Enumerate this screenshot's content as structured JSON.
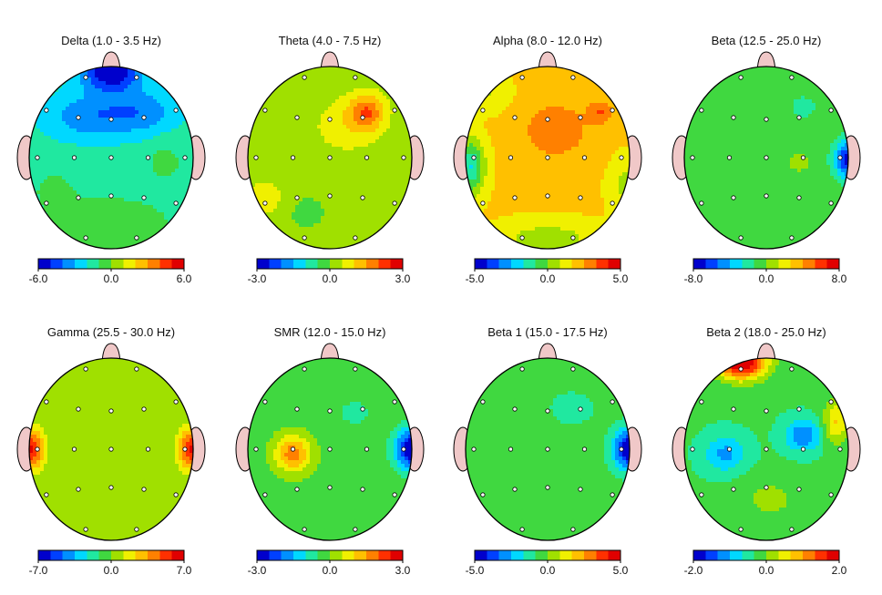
{
  "chart_data": [
    {
      "type": "heatmap",
      "title": "Delta (1.0 - 3.5 Hz)",
      "scale": {
        "min": -6.0,
        "max": 6.0,
        "ticks": [
          "-6.0",
          "0.0",
          "6.0"
        ]
      },
      "base": -1.6,
      "blobs": [
        {
          "u": 0.0,
          "v": -0.95,
          "su": 0.35,
          "sv": 0.22,
          "a": -4.6
        },
        {
          "u": -0.3,
          "v": -0.45,
          "su": 0.5,
          "sv": 0.25,
          "a": -2.0
        },
        {
          "u": 0.35,
          "v": -0.5,
          "su": 0.45,
          "sv": 0.25,
          "a": -2.0
        },
        {
          "u": 0.65,
          "v": 0.05,
          "su": 0.25,
          "sv": 0.25,
          "a": 0.9
        },
        {
          "u": 0.0,
          "v": 0.75,
          "su": 0.7,
          "sv": 0.3,
          "a": 1.6
        },
        {
          "u": -0.7,
          "v": 0.35,
          "su": 0.3,
          "sv": 0.25,
          "a": 0.8
        }
      ]
    },
    {
      "type": "heatmap",
      "title": "Theta (4.0 - 7.5 Hz)",
      "scale": {
        "min": -3.0,
        "max": 3.0,
        "ticks": [
          "-3.0",
          "0.0",
          "3.0"
        ]
      },
      "base": 0.2,
      "blobs": [
        {
          "u": 0.45,
          "v": -0.5,
          "su": 0.22,
          "sv": 0.2,
          "a": 1.6
        },
        {
          "u": 0.2,
          "v": -0.35,
          "su": 0.4,
          "sv": 0.3,
          "a": 0.6
        },
        {
          "u": -0.8,
          "v": 0.45,
          "su": 0.25,
          "sv": 0.2,
          "a": 0.7
        },
        {
          "u": -0.3,
          "v": 0.6,
          "su": 0.35,
          "sv": 0.25,
          "a": -0.3
        }
      ]
    },
    {
      "type": "heatmap",
      "title": "Alpha (8.0 - 12.0 Hz)",
      "scale": {
        "min": -5.0,
        "max": 5.0,
        "ticks": [
          "-5.0",
          "0.0",
          "5.0"
        ]
      },
      "base": 1.8,
      "blobs": [
        {
          "u": 0.1,
          "v": -0.3,
          "su": 0.45,
          "sv": 0.35,
          "a": 1.2
        },
        {
          "u": 0.65,
          "v": -0.5,
          "su": 0.15,
          "sv": 0.12,
          "a": 1.4
        },
        {
          "u": -0.95,
          "v": 0.1,
          "su": 0.18,
          "sv": 0.3,
          "a": -3.5
        },
        {
          "u": 0.0,
          "v": 0.9,
          "su": 0.6,
          "sv": 0.2,
          "a": -1.5
        },
        {
          "u": 0.95,
          "v": 0.3,
          "su": 0.2,
          "sv": 0.3,
          "a": -1.2
        },
        {
          "u": -0.7,
          "v": -0.7,
          "su": 0.25,
          "sv": 0.2,
          "a": -1.0
        }
      ]
    },
    {
      "type": "heatmap",
      "title": "Beta (12.5 - 25.0 Hz)",
      "scale": {
        "min": -8.0,
        "max": 8.0,
        "ticks": [
          "-8.0",
          "0.0",
          "8.0"
        ]
      },
      "base": -0.6,
      "blobs": [
        {
          "u": 1.0,
          "v": 0.02,
          "su": 0.17,
          "sv": 0.2,
          "a": -6.8
        },
        {
          "u": 0.45,
          "v": -0.55,
          "su": 0.25,
          "sv": 0.2,
          "a": -1.0
        },
        {
          "u": 0.4,
          "v": 0.05,
          "su": 0.18,
          "sv": 0.15,
          "a": 0.9
        }
      ]
    },
    {
      "type": "heatmap",
      "title": "Gamma (25.5 - 30.0 Hz)",
      "scale": {
        "min": -7.0,
        "max": 7.0,
        "ticks": [
          "-7.0",
          "0.0",
          "7.0"
        ]
      },
      "base": 0.0,
      "blobs": [
        {
          "u": -1.0,
          "v": 0.0,
          "su": 0.18,
          "sv": 0.24,
          "a": 6.2
        },
        {
          "u": 1.0,
          "v": 0.0,
          "su": 0.18,
          "sv": 0.24,
          "a": 6.2
        }
      ]
    },
    {
      "type": "heatmap",
      "title": "SMR (12.0 - 15.0 Hz)",
      "scale": {
        "min": -3.0,
        "max": 3.0,
        "ticks": [
          "-3.0",
          "0.0",
          "3.0"
        ]
      },
      "base": -0.2,
      "blobs": [
        {
          "u": -0.45,
          "v": 0.05,
          "su": 0.22,
          "sv": 0.2,
          "a": 2.0
        },
        {
          "u": 1.0,
          "v": 0.0,
          "su": 0.2,
          "sv": 0.22,
          "a": -3.0
        },
        {
          "u": 0.3,
          "v": -0.4,
          "su": 0.3,
          "sv": 0.2,
          "a": -0.4
        }
      ]
    },
    {
      "type": "heatmap",
      "title": "Beta 1 (15.0 - 17.5 Hz)",
      "scale": {
        "min": -5.0,
        "max": 5.0,
        "ticks": [
          "-5.0",
          "0.0",
          "5.0"
        ]
      },
      "base": -0.5,
      "blobs": [
        {
          "u": 1.0,
          "v": 0.0,
          "su": 0.2,
          "sv": 0.22,
          "a": -4.6
        },
        {
          "u": 0.3,
          "v": -0.45,
          "su": 0.3,
          "sv": 0.2,
          "a": -0.7
        }
      ]
    },
    {
      "type": "heatmap",
      "title": "Beta 2 (18.0 - 25.0 Hz)",
      "scale": {
        "min": -2.0,
        "max": 2.0,
        "ticks": [
          "-2.0",
          "0.0",
          "2.0"
        ]
      },
      "base": -0.3,
      "blobs": [
        {
          "u": -0.3,
          "v": -0.95,
          "su": 0.3,
          "sv": 0.18,
          "a": 2.5
        },
        {
          "u": 0.85,
          "v": -0.3,
          "su": 0.15,
          "sv": 0.25,
          "a": 1.0
        },
        {
          "u": 0.45,
          "v": -0.15,
          "su": 0.22,
          "sv": 0.17,
          "a": -1.0
        },
        {
          "u": -0.5,
          "v": 0.05,
          "su": 0.25,
          "sv": 0.2,
          "a": -0.8
        },
        {
          "u": 0.05,
          "v": 0.55,
          "su": 0.4,
          "sv": 0.25,
          "a": 0.4
        }
      ]
    }
  ],
  "electrodes": [
    {
      "name": "Fp1",
      "u": -0.31,
      "v": -0.88
    },
    {
      "name": "Fp2",
      "u": 0.31,
      "v": -0.88
    },
    {
      "name": "F7",
      "u": -0.79,
      "v": -0.52
    },
    {
      "name": "F3",
      "u": -0.4,
      "v": -0.44
    },
    {
      "name": "Fz",
      "u": 0.0,
      "v": -0.42
    },
    {
      "name": "F4",
      "u": 0.4,
      "v": -0.44
    },
    {
      "name": "F8",
      "u": 0.79,
      "v": -0.52
    },
    {
      "name": "T3",
      "u": -0.9,
      "v": 0.0
    },
    {
      "name": "C3",
      "u": -0.45,
      "v": 0.0
    },
    {
      "name": "Cz",
      "u": 0.0,
      "v": 0.0
    },
    {
      "name": "C4",
      "u": 0.45,
      "v": 0.0
    },
    {
      "name": "T4",
      "u": 0.9,
      "v": 0.0
    },
    {
      "name": "T5",
      "u": -0.79,
      "v": 0.5
    },
    {
      "name": "P3",
      "u": -0.4,
      "v": 0.44
    },
    {
      "name": "Pz",
      "u": 0.0,
      "v": 0.42
    },
    {
      "name": "P4",
      "u": 0.4,
      "v": 0.44
    },
    {
      "name": "T6",
      "u": 0.79,
      "v": 0.5
    },
    {
      "name": "O1",
      "u": -0.31,
      "v": 0.88
    },
    {
      "name": "O2",
      "u": 0.31,
      "v": 0.88
    }
  ],
  "colormap": [
    "#0000cc",
    "#0040ff",
    "#0090ff",
    "#00d8ff",
    "#20e8a0",
    "#40d840",
    "#a0e000",
    "#f0f000",
    "#ffc000",
    "#ff8000",
    "#ff3000",
    "#e00000"
  ],
  "colors": {
    "head_outline": "#000000",
    "nose_ear_fill": "#f0c8c8",
    "electrode_fill": "#ffffff"
  }
}
